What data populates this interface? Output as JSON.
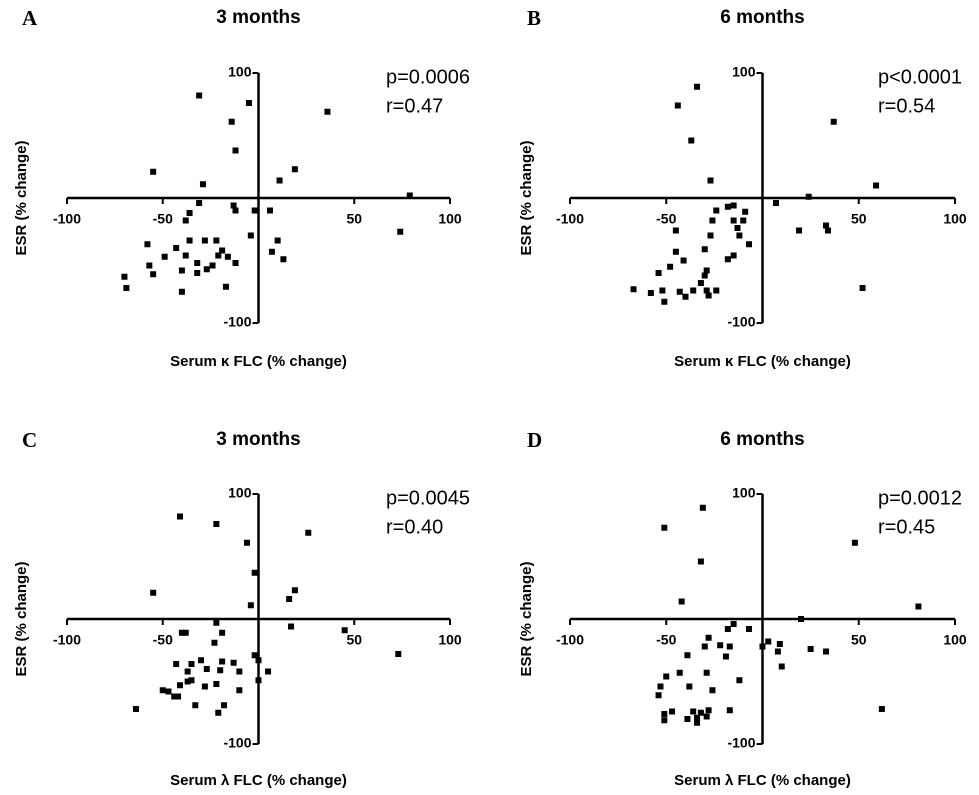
{
  "chart_data": [
    {
      "type": "scatter",
      "panel": "A",
      "title": "3 months",
      "xlabel": "Serum κ FLC (% change)",
      "ylabel": "ESR (% change)",
      "annotations": [
        "p=0.0006",
        "r=0.47"
      ],
      "color": "#000000",
      "xlim": [
        -100,
        100
      ],
      "ylim": [
        -100,
        100
      ],
      "xticks": [
        -100,
        -50,
        50,
        100
      ],
      "yticks": [
        100,
        -100
      ],
      "x": [
        -31,
        -5,
        -14,
        36,
        -12,
        -55,
        19,
        11,
        -29,
        79,
        -13,
        -12,
        -2,
        6,
        -31,
        -36,
        -38,
        -4,
        10,
        74,
        -58,
        -43,
        -36,
        -28,
        -22,
        -19,
        -38,
        -49,
        -21,
        -16,
        -12,
        7,
        13,
        -57,
        -55,
        -40,
        -32,
        -24,
        -70,
        -69,
        -40,
        -17,
        -27,
        -32
      ],
      "y": [
        82,
        76,
        61,
        69,
        38,
        21,
        23,
        14,
        11,
        2,
        -6,
        -10,
        -10,
        -10,
        -4,
        -12,
        -18,
        -30,
        -34,
        -27,
        -37,
        -40,
        -34,
        -34,
        -34,
        -42,
        -46,
        -47,
        -46,
        -47,
        -52,
        -43,
        -49,
        -54,
        -61,
        -58,
        -60,
        -54,
        -63,
        -72,
        -75,
        -71,
        -57,
        -52
      ]
    },
    {
      "type": "scatter",
      "panel": "B",
      "title": "6 months",
      "xlabel": "Serum κ FLC (% change)",
      "ylabel": "ESR (% change)",
      "annotations": [
        "p<0.0001",
        "r=0.54"
      ],
      "color": "#000000",
      "xlim": [
        -100,
        100
      ],
      "ylim": [
        -100,
        100
      ],
      "xticks": [
        -100,
        -50,
        50,
        100
      ],
      "yticks": [
        100,
        -100
      ],
      "x": [
        -44,
        -34,
        -37,
        37,
        -27,
        59,
        24,
        7,
        -18,
        -15,
        -9,
        -10,
        -15,
        -24,
        -26,
        -13,
        33,
        34,
        19,
        -7,
        -12,
        -27,
        -30,
        -45,
        -45,
        -15,
        -18,
        -41,
        -48,
        -54,
        -29,
        -32,
        -29,
        -24,
        -30,
        -36,
        -43,
        -52,
        -58,
        -67,
        -40,
        -51,
        52,
        -28
      ],
      "y": [
        74,
        89,
        46,
        61,
        14,
        10,
        1,
        -4,
        -7,
        -6,
        -11,
        -18,
        -18,
        -10,
        -18,
        -24,
        -22,
        -26,
        -26,
        -37,
        -30,
        -30,
        -41,
        -26,
        -43,
        -46,
        -49,
        -50,
        -55,
        -60,
        -58,
        -68,
        -74,
        -74,
        -62,
        -74,
        -75,
        -74,
        -76,
        -73,
        -79,
        -83,
        -72,
        -78
      ]
    },
    {
      "type": "scatter",
      "panel": "C",
      "title": "3 months",
      "xlabel": "Serum λ FLC (% change)",
      "ylabel": "ESR (% change)",
      "annotations": [
        "p=0.0045",
        "r=0.40"
      ],
      "color": "#000000",
      "xlim": [
        -100,
        100
      ],
      "ylim": [
        -100,
        100
      ],
      "xticks": [
        -100,
        -50,
        50,
        100
      ],
      "yticks": [
        100,
        -100
      ],
      "x": [
        -41,
        -22,
        26,
        -6,
        -2,
        -55,
        19,
        16,
        -4,
        45,
        -22,
        17,
        -40,
        -38,
        -19,
        -23,
        -2,
        73,
        -30,
        -43,
        -35,
        -19,
        -13,
        5,
        0,
        -37,
        -27,
        -20,
        -10,
        0,
        -37,
        -41,
        -28,
        -22,
        -50,
        -47,
        -44,
        -42,
        -35,
        -10,
        -18,
        -21,
        -64,
        -33
      ],
      "y": [
        82,
        76,
        69,
        61,
        37,
        21,
        23,
        16,
        11,
        -9,
        -3,
        -6,
        -11,
        -11,
        -11,
        -19,
        -29,
        -28,
        -33,
        -36,
        -36,
        -34,
        -35,
        -42,
        -33,
        -42,
        -40,
        -41,
        -42,
        -49,
        -50,
        -53,
        -54,
        -52,
        -57,
        -58,
        -62,
        -62,
        -49,
        -57,
        -69,
        -75,
        -72,
        -69
      ]
    },
    {
      "type": "scatter",
      "panel": "D",
      "title": "6 months",
      "xlabel": "Serum λ FLC (% change)",
      "ylabel": "ESR (% change)",
      "annotations": [
        "p=0.0012",
        "r=0.45"
      ],
      "color": "#000000",
      "xlim": [
        -100,
        100
      ],
      "ylim": [
        -100,
        100
      ],
      "xticks": [
        -100,
        -50,
        50,
        100
      ],
      "yticks": [
        100,
        -100
      ],
      "x": [
        -51,
        -31,
        -32,
        48,
        -42,
        81,
        20,
        -15,
        -18,
        -7,
        3,
        9,
        8,
        -28,
        -30,
        -22,
        25,
        33,
        -19,
        -39,
        0,
        -17,
        10,
        -43,
        -29,
        -12,
        -50,
        -38,
        -53,
        -54,
        -26,
        -28,
        -32,
        -36,
        -47,
        -51,
        -51,
        -39,
        -34,
        -34,
        -29,
        -17,
        62
      ],
      "y": [
        73,
        89,
        46,
        61,
        14,
        10,
        0,
        -4,
        -8,
        -8,
        -18,
        -20,
        -26,
        -15,
        -22,
        -21,
        -24,
        -26,
        -30,
        -29,
        -22,
        -22,
        -38,
        -43,
        -43,
        -49,
        -46,
        -54,
        -54,
        -61,
        -57,
        -73,
        -75,
        -74,
        -74,
        -76,
        -81,
        -80,
        -79,
        -83,
        -78,
        -73,
        -72
      ]
    }
  ]
}
